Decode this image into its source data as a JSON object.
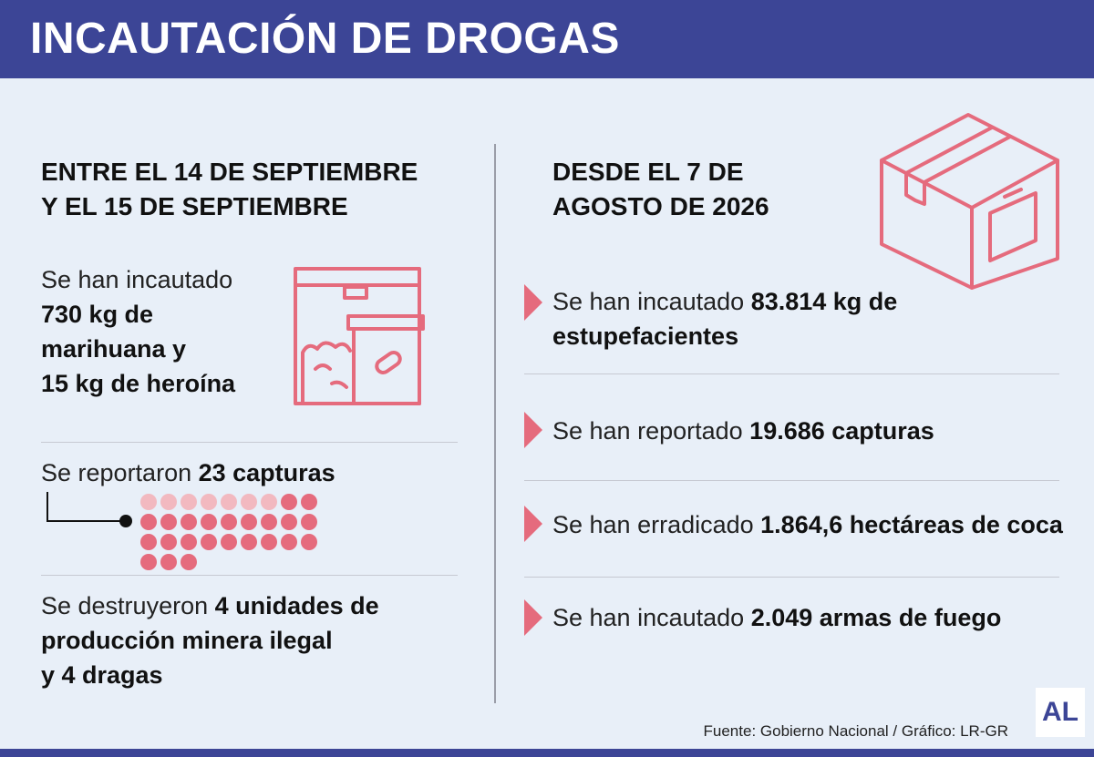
{
  "header": {
    "title": "INCAUTACIÓN DE DROGAS"
  },
  "left": {
    "heading_line1": "ENTRE EL 14 DE SEPTIEMBRE",
    "heading_line2": "Y EL 15 DE SEPTIEMBRE",
    "item1": {
      "intro": "Se han incautado",
      "line1": "730 kg de",
      "line2": "marihuana y",
      "line3": "15 kg de heroína"
    },
    "item2": {
      "intro": "Se reportaron ",
      "bold": "23 capturas",
      "dot_total": 30,
      "dot_highlight": 23,
      "dot_color_light": "#f2b9c0",
      "dot_color_dark": "#e56b7d"
    },
    "item3": {
      "intro": "Se destruyeron ",
      "bold1": "4 unidades de",
      "line2": "producción minera ilegal",
      "line3": "y 4 dragas"
    }
  },
  "right": {
    "heading_line1": "DESDE EL 7 DE",
    "heading_line2": "AGOSTO DE 2026",
    "items": [
      {
        "intro": "Se han incautado ",
        "bold": "83.814 kg de",
        "bold2": "estupefacientes"
      },
      {
        "intro": "Se han reportado ",
        "bold": "19.686 capturas"
      },
      {
        "intro": "Se han erradicado ",
        "bold": "1.864,6 hectáreas de coca"
      },
      {
        "intro": "Se han incautado ",
        "bold": "2.049 armas de fuego"
      }
    ]
  },
  "footer": {
    "source": "Fuente: Gobierno Nacional / Gráfico: LR-GR",
    "logo": "AL"
  },
  "colors": {
    "header_bg": "#3c4596",
    "accent": "#e56b7d",
    "background": "#e8eff8"
  },
  "icons": {
    "left_icon": "drug-package-icon",
    "right_icon": "box-icon",
    "bullet": "triangle-arrow-icon"
  }
}
